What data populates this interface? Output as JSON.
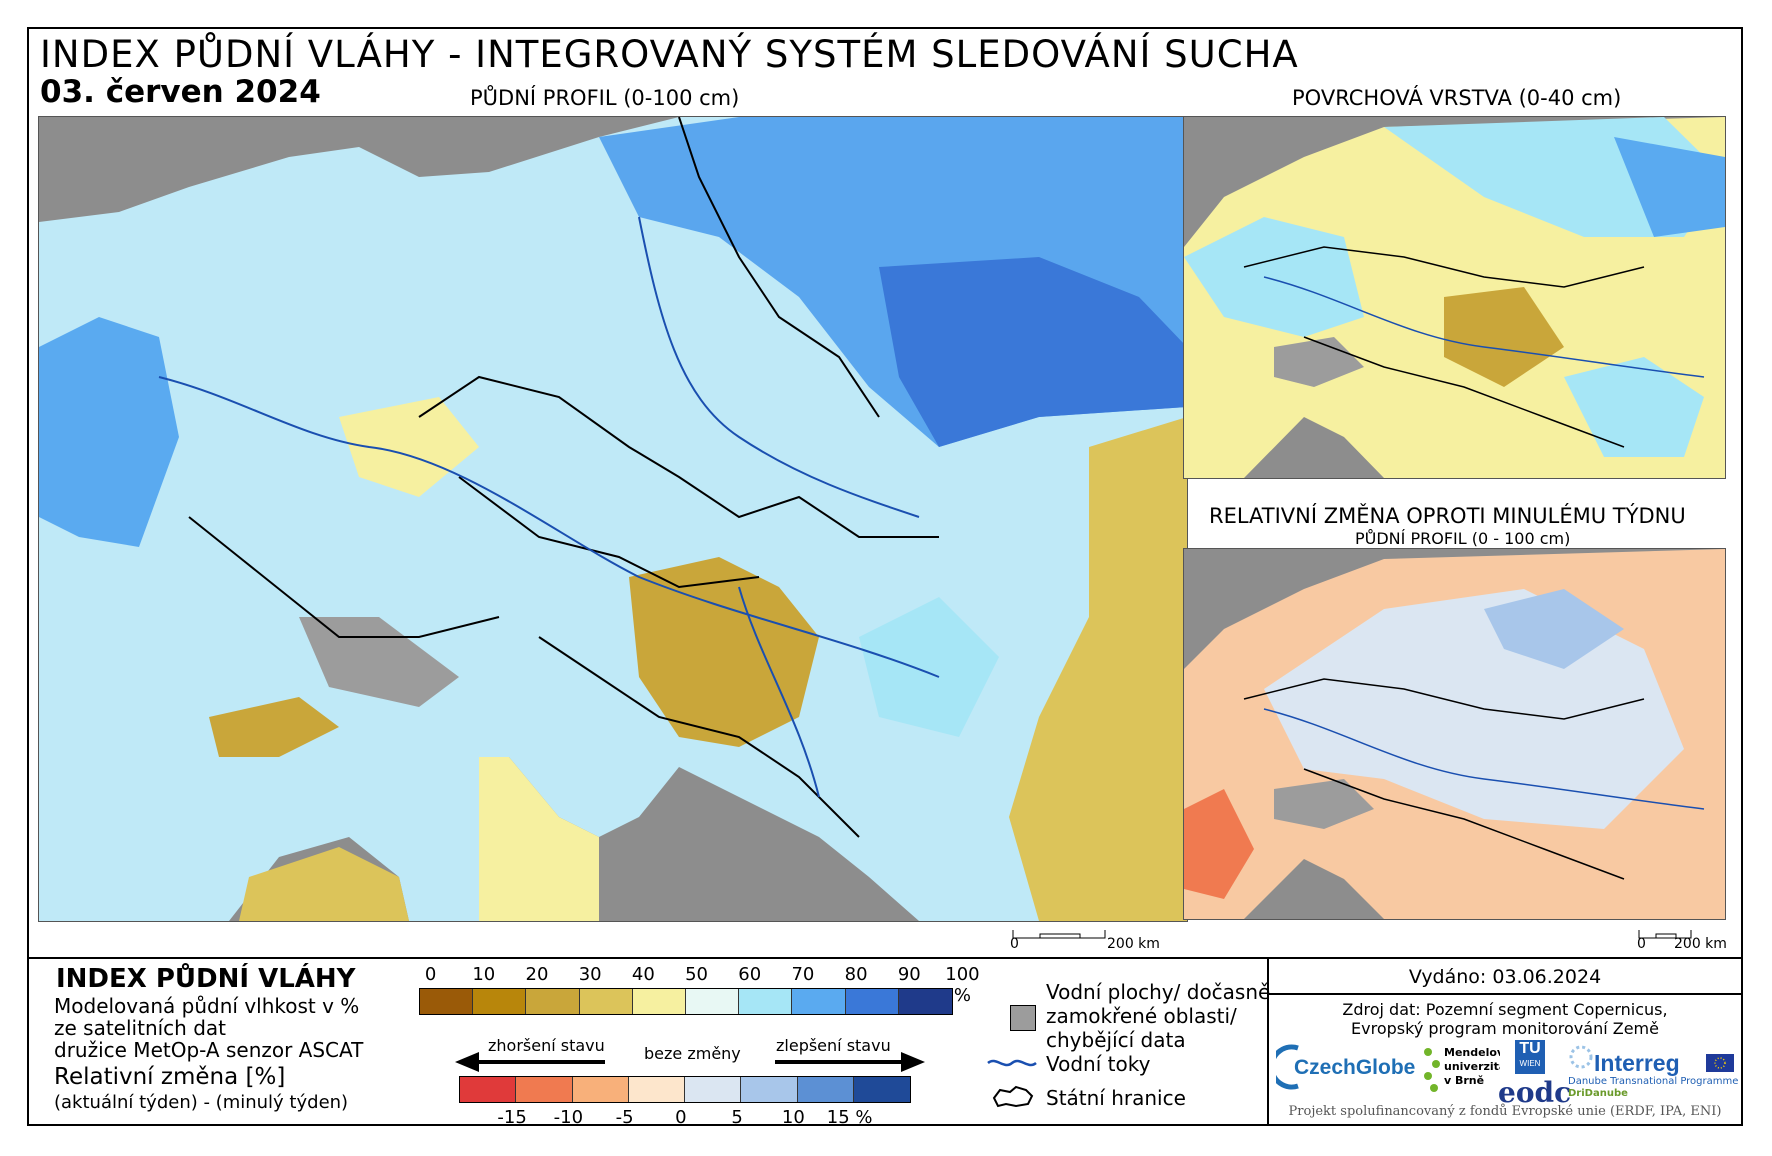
{
  "header": {
    "title": "INDEX PŮDNÍ VLÁHY - INTEGROVANÝ SYSTÉM SLEDOVÁNÍ SUCHA",
    "date": "03. červen 2024"
  },
  "maps": {
    "main_label": "PŮDNÍ PROFIL (0-100 cm)",
    "surface_label": "POVRCHOVÁ VRSTVA (0-40 cm)",
    "change_label": "RELATIVNÍ ZMĚNA OPROTI MINULÉMU TÝDNU",
    "change_sublabel": "PŮDNÍ PROFIL (0 - 100 cm)",
    "scale_zero": "0",
    "scale_value": "200 km"
  },
  "legend": {
    "title": "INDEX PŮDNÍ VLÁHY",
    "desc1": "Modelovaná půdní vlhkost v %",
    "desc2": "ze satelitních dat",
    "desc3": "družice MetOp-A senzor ASCAT",
    "change_title": "Relativní změna [%]",
    "change_desc": "(aktuální týden) - (minulý týden)",
    "moisture_ticks": [
      "0",
      "10",
      "20",
      "30",
      "40",
      "50",
      "60",
      "70",
      "80",
      "90",
      "100 %"
    ],
    "moisture_colors": [
      "#9a5a08",
      "#b8860b",
      "#c9a63a",
      "#dcc45a",
      "#f6f0a0",
      "#e8f8f4",
      "#a6e6f6",
      "#5aaaf0",
      "#3a78d8",
      "#1f3a8a"
    ],
    "worse_label": "zhoršení stavu",
    "nochange_label": "beze změny",
    "better_label": "zlepšení stavu",
    "change_ticks": [
      "-15",
      "-10",
      "-5",
      "0",
      "5",
      "10",
      "15 %"
    ],
    "change_colors": [
      "#e03a3a",
      "#f07a50",
      "#f8b07a",
      "#fde6cc",
      "#dbe6f2",
      "#a8c6ea",
      "#5c90d4",
      "#1f4a98"
    ],
    "water_label_1": "Vodní plochy/ dočasně",
    "water_label_2": "zamokřené oblasti/",
    "water_label_3": "chybějící data",
    "rivers_label": "Vodní toky",
    "borders_label": "Státní hranice"
  },
  "info": {
    "issued": "Vydáno: 03.06.2024",
    "source1": "Zdroj dat: Pozemní segment Copernicus,",
    "source2": "Evropský program monitorování Země",
    "logo_czechglobe": "CzechGlobe",
    "logo_mendel_1": "Mendelova",
    "logo_mendel_2": "univerzita",
    "logo_mendel_3": "v Brně",
    "logo_tu_1": "TU",
    "logo_tu_2": "WIEN",
    "logo_eodc": "eodc",
    "logo_interreg": "Interreg",
    "logo_interreg_sub": "Danube Transnational Programme",
    "logo_dridanube": "DriDanube",
    "footer": "Projekt spolufinancovaný z fondů Evropské unie (ERDF, IPA, ENI)"
  }
}
